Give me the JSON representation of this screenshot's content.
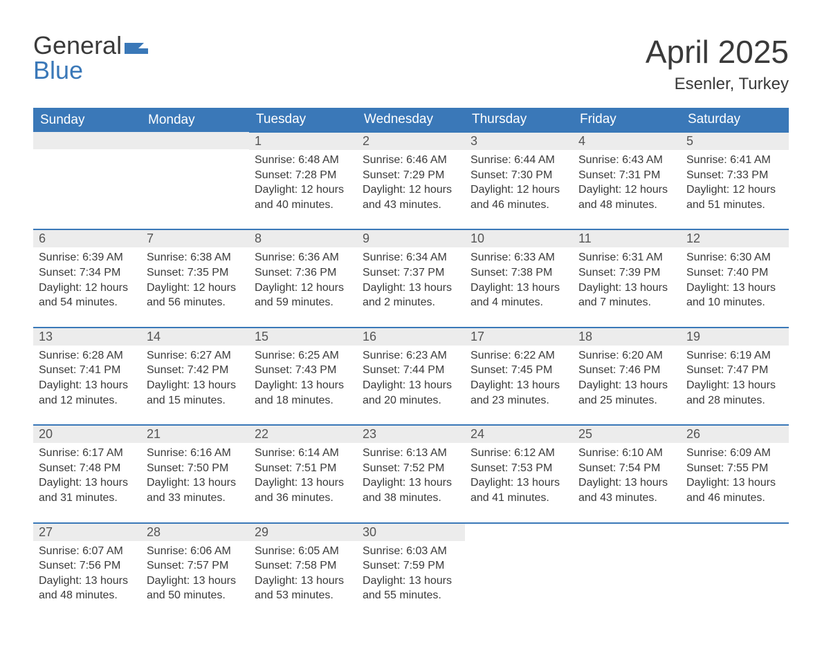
{
  "logo": {
    "line1": "General",
    "line2": "Blue",
    "flag_color": "#3a78b8"
  },
  "title": {
    "month": "April 2025",
    "location": "Esenler, Turkey"
  },
  "colors": {
    "header_bg": "#3a78b8",
    "header_fg": "#ffffff",
    "daynum_bg": "#ececec",
    "week_divider": "#3a78b8",
    "text": "#3a3a3a",
    "page_bg": "#ffffff"
  },
  "layout": {
    "columns": 7,
    "rows": 5,
    "leading_blank_cells": 2,
    "trailing_blank_cells": 3
  },
  "week_headers": [
    "Sunday",
    "Monday",
    "Tuesday",
    "Wednesday",
    "Thursday",
    "Friday",
    "Saturday"
  ],
  "days": [
    {
      "n": 1,
      "sunrise": "6:48 AM",
      "sunset": "7:28 PM",
      "daylight": "12 hours and 40 minutes."
    },
    {
      "n": 2,
      "sunrise": "6:46 AM",
      "sunset": "7:29 PM",
      "daylight": "12 hours and 43 minutes."
    },
    {
      "n": 3,
      "sunrise": "6:44 AM",
      "sunset": "7:30 PM",
      "daylight": "12 hours and 46 minutes."
    },
    {
      "n": 4,
      "sunrise": "6:43 AM",
      "sunset": "7:31 PM",
      "daylight": "12 hours and 48 minutes."
    },
    {
      "n": 5,
      "sunrise": "6:41 AM",
      "sunset": "7:33 PM",
      "daylight": "12 hours and 51 minutes."
    },
    {
      "n": 6,
      "sunrise": "6:39 AM",
      "sunset": "7:34 PM",
      "daylight": "12 hours and 54 minutes."
    },
    {
      "n": 7,
      "sunrise": "6:38 AM",
      "sunset": "7:35 PM",
      "daylight": "12 hours and 56 minutes."
    },
    {
      "n": 8,
      "sunrise": "6:36 AM",
      "sunset": "7:36 PM",
      "daylight": "12 hours and 59 minutes."
    },
    {
      "n": 9,
      "sunrise": "6:34 AM",
      "sunset": "7:37 PM",
      "daylight": "13 hours and 2 minutes."
    },
    {
      "n": 10,
      "sunrise": "6:33 AM",
      "sunset": "7:38 PM",
      "daylight": "13 hours and 4 minutes."
    },
    {
      "n": 11,
      "sunrise": "6:31 AM",
      "sunset": "7:39 PM",
      "daylight": "13 hours and 7 minutes."
    },
    {
      "n": 12,
      "sunrise": "6:30 AM",
      "sunset": "7:40 PM",
      "daylight": "13 hours and 10 minutes."
    },
    {
      "n": 13,
      "sunrise": "6:28 AM",
      "sunset": "7:41 PM",
      "daylight": "13 hours and 12 minutes."
    },
    {
      "n": 14,
      "sunrise": "6:27 AM",
      "sunset": "7:42 PM",
      "daylight": "13 hours and 15 minutes."
    },
    {
      "n": 15,
      "sunrise": "6:25 AM",
      "sunset": "7:43 PM",
      "daylight": "13 hours and 18 minutes."
    },
    {
      "n": 16,
      "sunrise": "6:23 AM",
      "sunset": "7:44 PM",
      "daylight": "13 hours and 20 minutes."
    },
    {
      "n": 17,
      "sunrise": "6:22 AM",
      "sunset": "7:45 PM",
      "daylight": "13 hours and 23 minutes."
    },
    {
      "n": 18,
      "sunrise": "6:20 AM",
      "sunset": "7:46 PM",
      "daylight": "13 hours and 25 minutes."
    },
    {
      "n": 19,
      "sunrise": "6:19 AM",
      "sunset": "7:47 PM",
      "daylight": "13 hours and 28 minutes."
    },
    {
      "n": 20,
      "sunrise": "6:17 AM",
      "sunset": "7:48 PM",
      "daylight": "13 hours and 31 minutes."
    },
    {
      "n": 21,
      "sunrise": "6:16 AM",
      "sunset": "7:50 PM",
      "daylight": "13 hours and 33 minutes."
    },
    {
      "n": 22,
      "sunrise": "6:14 AM",
      "sunset": "7:51 PM",
      "daylight": "13 hours and 36 minutes."
    },
    {
      "n": 23,
      "sunrise": "6:13 AM",
      "sunset": "7:52 PM",
      "daylight": "13 hours and 38 minutes."
    },
    {
      "n": 24,
      "sunrise": "6:12 AM",
      "sunset": "7:53 PM",
      "daylight": "13 hours and 41 minutes."
    },
    {
      "n": 25,
      "sunrise": "6:10 AM",
      "sunset": "7:54 PM",
      "daylight": "13 hours and 43 minutes."
    },
    {
      "n": 26,
      "sunrise": "6:09 AM",
      "sunset": "7:55 PM",
      "daylight": "13 hours and 46 minutes."
    },
    {
      "n": 27,
      "sunrise": "6:07 AM",
      "sunset": "7:56 PM",
      "daylight": "13 hours and 48 minutes."
    },
    {
      "n": 28,
      "sunrise": "6:06 AM",
      "sunset": "7:57 PM",
      "daylight": "13 hours and 50 minutes."
    },
    {
      "n": 29,
      "sunrise": "6:05 AM",
      "sunset": "7:58 PM",
      "daylight": "13 hours and 53 minutes."
    },
    {
      "n": 30,
      "sunrise": "6:03 AM",
      "sunset": "7:59 PM",
      "daylight": "13 hours and 55 minutes."
    }
  ],
  "labels": {
    "sunrise": "Sunrise:",
    "sunset": "Sunset:",
    "daylight": "Daylight:"
  }
}
